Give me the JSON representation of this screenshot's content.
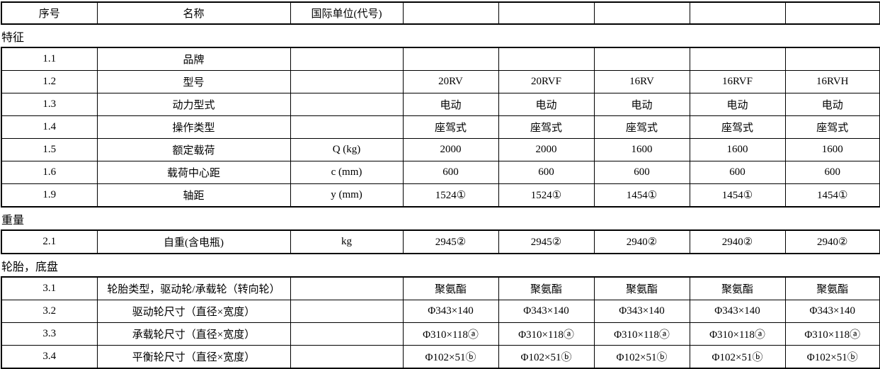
{
  "page": {
    "background_color": "#ffffff",
    "border_color": "#000000",
    "text_color": "#000000"
  },
  "header": {
    "col_no": "序号",
    "col_name": "名称",
    "col_unit": "国际单位(代号)",
    "data_cols": [
      "",
      "",
      "",
      "",
      ""
    ]
  },
  "sections": [
    {
      "label": "特征",
      "rows": [
        {
          "no": "1.1",
          "name": "品牌",
          "unit": "",
          "values": [
            "",
            "",
            "",
            "",
            ""
          ]
        },
        {
          "no": "1.2",
          "name": "型号",
          "unit": "",
          "values": [
            "20RV",
            "20RVF",
            "16RV",
            "16RVF",
            "16RVH"
          ]
        },
        {
          "no": "1.3",
          "name": "动力型式",
          "unit": "",
          "values": [
            "电动",
            "电动",
            "电动",
            "电动",
            "电动"
          ]
        },
        {
          "no": "1.4",
          "name": "操作类型",
          "unit": "",
          "values": [
            "座驾式",
            "座驾式",
            "座驾式",
            "座驾式",
            "座驾式"
          ]
        },
        {
          "no": "1.5",
          "name": "额定载荷",
          "unit": "Q (kg)",
          "values": [
            "2000",
            "2000",
            "1600",
            "1600",
            "1600"
          ]
        },
        {
          "no": "1.6",
          "name": "载荷中心距",
          "unit": "c (mm)",
          "values": [
            "600",
            "600",
            "600",
            "600",
            "600"
          ]
        },
        {
          "no": "1.9",
          "name": "轴距",
          "unit": "y (mm)",
          "values": [
            "1524①",
            "1524①",
            "1454①",
            "1454①",
            "1454①"
          ]
        }
      ]
    },
    {
      "label": "重量",
      "rows": [
        {
          "no": "2.1",
          "name": "自重(含电瓶)",
          "unit": "kg",
          "values": [
            "2945②",
            "2945②",
            "2940②",
            "2940②",
            "2940②"
          ]
        }
      ]
    },
    {
      "label": "轮胎，底盘",
      "rows": [
        {
          "no": "3.1",
          "name": "轮胎类型，驱动轮/承载轮（转向轮）",
          "unit": "",
          "values": [
            "聚氨酯",
            "聚氨酯",
            "聚氨酯",
            "聚氨酯",
            "聚氨酯"
          ]
        },
        {
          "no": "3.2",
          "name": "驱动轮尺寸（直径×宽度）",
          "unit": "",
          "values": [
            "Φ343×140",
            "Φ343×140",
            "Φ343×140",
            "Φ343×140",
            "Φ343×140"
          ]
        },
        {
          "no": "3.3",
          "name": "承载轮尺寸（直径×宽度）",
          "unit": "",
          "values": [
            "Φ310×118ⓐ",
            "Φ310×118ⓐ",
            "Φ310×118ⓐ",
            "Φ310×118ⓐ",
            "Φ310×118ⓐ"
          ]
        },
        {
          "no": "3.4",
          "name": "平衡轮尺寸（直径×宽度）",
          "unit": "",
          "values": [
            "Φ102×51ⓑ",
            "Φ102×51ⓑ",
            "Φ102×51ⓑ",
            "Φ102×51ⓑ",
            "Φ102×51ⓑ"
          ]
        }
      ]
    }
  ]
}
